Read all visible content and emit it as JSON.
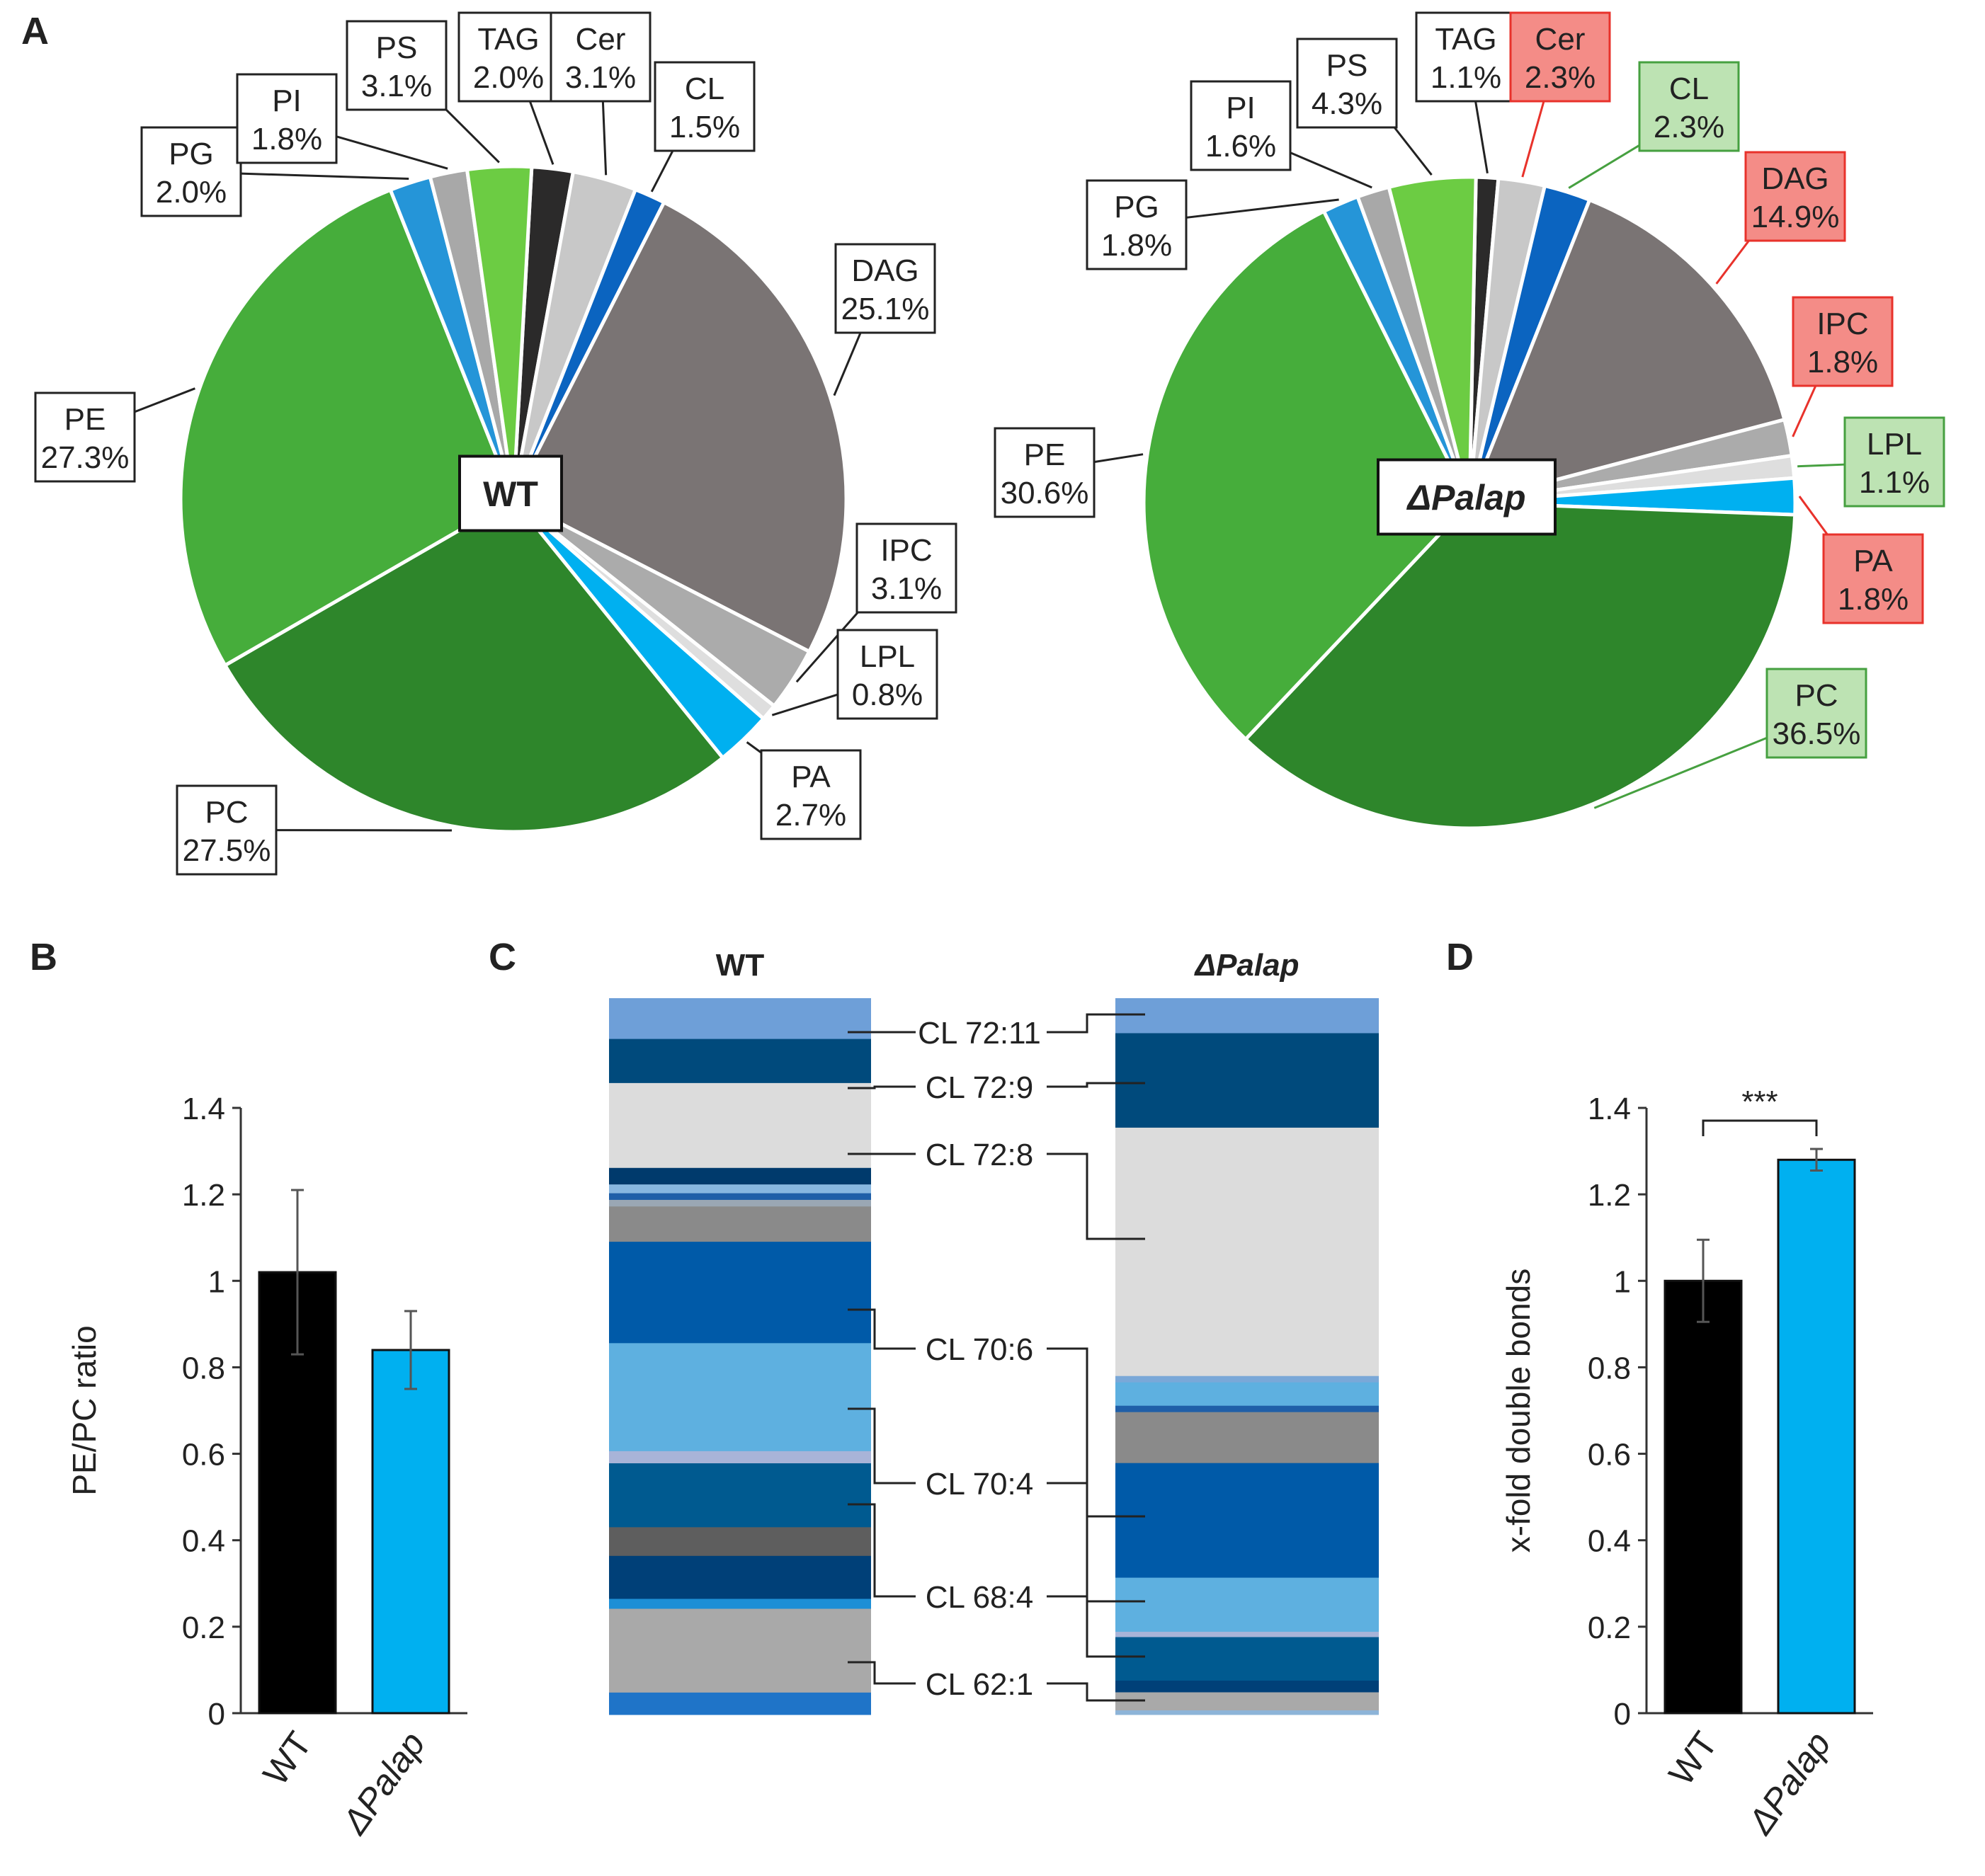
{
  "panel_letters": [
    "A",
    "B",
    "C",
    "D"
  ],
  "chart_data": [
    {
      "type": "pie",
      "panel": "A",
      "title": "WT",
      "slices": [
        {
          "label": "TAG",
          "value": 2.0,
          "pct": "2.0%",
          "color": "#2b2a2a",
          "box": "white"
        },
        {
          "label": "Cer",
          "value": 3.1,
          "pct": "3.1%",
          "color": "#c8c8c8",
          "box": "white"
        },
        {
          "label": "CL",
          "value": 1.5,
          "pct": "1.5%",
          "color": "#0b64c0",
          "box": "white"
        },
        {
          "label": "DAG",
          "value": 25.1,
          "pct": "25.1%",
          "color": "#7a7474",
          "box": "white"
        },
        {
          "label": "IPC",
          "value": 3.1,
          "pct": "3.1%",
          "color": "#ababab",
          "box": "white"
        },
        {
          "label": "LPL",
          "value": 0.8,
          "pct": "0.8%",
          "color": "#dedede",
          "box": "white"
        },
        {
          "label": "PA",
          "value": 2.7,
          "pct": "2.7%",
          "color": "#00b0f0",
          "box": "white"
        },
        {
          "label": "PC",
          "value": 27.5,
          "pct": "27.5%",
          "color": "#2e862b",
          "box": "white"
        },
        {
          "label": "PE",
          "value": 27.3,
          "pct": "27.3%",
          "color": "#46ad3b",
          "box": "white"
        },
        {
          "label": "PG",
          "value": 2.0,
          "pct": "2.0%",
          "color": "#2595d8",
          "box": "white"
        },
        {
          "label": "PI",
          "value": 1.8,
          "pct": "1.8%",
          "color": "#a8a8a8",
          "box": "white"
        },
        {
          "label": "PS",
          "value": 3.1,
          "pct": "3.1%",
          "color": "#6ccc43",
          "box": "white"
        }
      ]
    },
    {
      "type": "pie",
      "panel": "A",
      "title": "ΔPalap",
      "slices": [
        {
          "label": "TAG",
          "value": 1.1,
          "pct": "1.1%",
          "color": "#2b2a2a",
          "box": "white"
        },
        {
          "label": "Cer",
          "value": 2.3,
          "pct": "2.3%",
          "color": "#c8c8c8",
          "box": "red"
        },
        {
          "label": "CL",
          "value": 2.3,
          "pct": "2.3%",
          "color": "#0b64c0",
          "box": "green"
        },
        {
          "label": "DAG",
          "value": 14.9,
          "pct": "14.9%",
          "color": "#7a7474",
          "box": "red"
        },
        {
          "label": "IPC",
          "value": 1.8,
          "pct": "1.8%",
          "color": "#ababab",
          "box": "red"
        },
        {
          "label": "LPL",
          "value": 1.1,
          "pct": "1.1%",
          "color": "#dedede",
          "box": "green"
        },
        {
          "label": "PA",
          "value": 1.8,
          "pct": "1.8%",
          "color": "#00b0f0",
          "box": "red"
        },
        {
          "label": "PC",
          "value": 36.5,
          "pct": "36.5%",
          "color": "#2e862b",
          "box": "green"
        },
        {
          "label": "PE",
          "value": 30.6,
          "pct": "30.6%",
          "color": "#46ad3b",
          "box": "white"
        },
        {
          "label": "PG",
          "value": 1.8,
          "pct": "1.8%",
          "color": "#2595d8",
          "box": "white"
        },
        {
          "label": "PI",
          "value": 1.6,
          "pct": "1.6%",
          "color": "#a8a8a8",
          "box": "white"
        },
        {
          "label": "PS",
          "value": 4.3,
          "pct": "4.3%",
          "color": "#6ccc43",
          "box": "white"
        }
      ]
    },
    {
      "type": "bar",
      "panel": "B",
      "categories": [
        "WT",
        "ΔPalap"
      ],
      "values": [
        1.02,
        0.84
      ],
      "errors": [
        0.19,
        0.09
      ],
      "colors": [
        "#000000",
        "#00b0f0"
      ],
      "ylabel": "PE/PC ratio",
      "ylim": [
        0,
        1.4
      ],
      "yticks": [
        "0",
        "0.2",
        "0.4",
        "0.6",
        "0.8",
        "1",
        "1.2",
        "1.4"
      ],
      "significance": ""
    },
    {
      "type": "stacked-bar",
      "panel": "C",
      "columns": [
        {
          "title": "WT",
          "segments": [
            {
              "v": 3.7,
              "c": "#6e9fd8"
            },
            {
              "v": 4.0,
              "c": "#004a7c"
            },
            {
              "v": 7.7,
              "c": "#dcdcdc"
            },
            {
              "v": 1.5,
              "c": "#003a6c"
            },
            {
              "v": 0.8,
              "c": "#88b7e0"
            },
            {
              "v": 0.6,
              "c": "#1f5fa8"
            },
            {
              "v": 0.6,
              "c": "#9aa7b4"
            },
            {
              "v": 3.2,
              "c": "#8a8a8a"
            },
            {
              "v": 9.2,
              "c": "#005aa8"
            },
            {
              "v": 9.8,
              "c": "#5eb0e0"
            },
            {
              "v": 1.1,
              "c": "#a8b4d8"
            },
            {
              "v": 5.8,
              "c": "#005a90"
            },
            {
              "v": 2.6,
              "c": "#5e5e5e"
            },
            {
              "v": 3.9,
              "c": "#004078"
            },
            {
              "v": 0.9,
              "c": "#1d8fd6"
            },
            {
              "v": 7.6,
              "c": "#a9a9a9"
            },
            {
              "v": 2.0,
              "c": "#1f74c8"
            }
          ]
        },
        {
          "title": "ΔPalap",
          "segments": [
            {
              "v": 3.3,
              "c": "#6e9fd8"
            },
            {
              "v": 8.9,
              "c": "#004a7c"
            },
            {
              "v": 23.4,
              "c": "#dcdcdc"
            },
            {
              "v": 0.6,
              "c": "#7aa8d8"
            },
            {
              "v": 2.2,
              "c": "#5eb0e0"
            },
            {
              "v": 0.6,
              "c": "#1f5fa8"
            },
            {
              "v": 4.8,
              "c": "#8a8a8a"
            },
            {
              "v": 10.8,
              "c": "#005aa8"
            },
            {
              "v": 5.1,
              "c": "#5eb0e0"
            },
            {
              "v": 0.5,
              "c": "#a8b4d8"
            },
            {
              "v": 4.1,
              "c": "#005a90"
            },
            {
              "v": 1.1,
              "c": "#004078"
            },
            {
              "v": 1.7,
              "c": "#a9a9a9"
            },
            {
              "v": 0.4,
              "c": "#8db4d8"
            }
          ]
        }
      ],
      "labels": [
        "CL 72:11",
        "CL 72:9",
        "CL 72:8",
        "CL 70:6",
        "CL 70:4",
        "CL 68:4",
        "CL 62:1"
      ]
    },
    {
      "type": "bar",
      "panel": "D",
      "categories": [
        "WT",
        "ΔPalap"
      ],
      "values": [
        1.0,
        1.28
      ],
      "errors": [
        0.095,
        0.025
      ],
      "colors": [
        "#000000",
        "#00b0f0"
      ],
      "ylabel": "x-fold double bonds",
      "ylim": [
        0,
        1.4
      ],
      "yticks": [
        "0",
        "0.2",
        "0.4",
        "0.6",
        "0.8",
        "1",
        "1.2",
        "1.4"
      ],
      "significance": "***"
    }
  ]
}
